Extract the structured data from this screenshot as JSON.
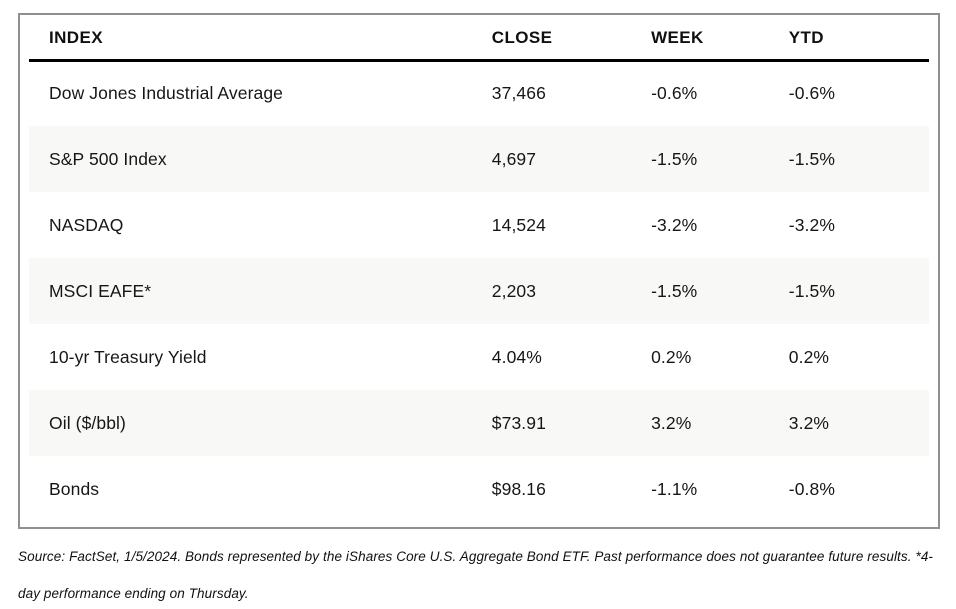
{
  "chart_data": {
    "type": "table",
    "columns": [
      "INDEX",
      "CLOSE",
      "WEEK",
      "YTD"
    ],
    "rows": [
      [
        "Dow Jones Industrial Average",
        "37,466",
        "-0.6%",
        "-0.6%"
      ],
      [
        "S&P 500 Index",
        "4,697",
        "-1.5%",
        "-1.5%"
      ],
      [
        "NASDAQ",
        "14,524",
        "-3.2%",
        "-3.2%"
      ],
      [
        "MSCI EAFE*",
        "2,203",
        "-1.5%",
        "-1.5%"
      ],
      [
        "10-yr Treasury Yield",
        "4.04%",
        "0.2%",
        "0.2%"
      ],
      [
        "Oil ($/bbl)",
        "$73.91",
        "3.2%",
        "3.2%"
      ],
      [
        "Bonds",
        "$98.16",
        "-1.1%",
        "-0.8%"
      ]
    ],
    "footnote": "Source: FactSet, 1/5/2024. Bonds represented by the iShares Core U.S. Aggregate Bond ETF. Past performance does not guarantee future results. *4-day performance ending on Thursday.",
    "layout": {
      "stripe_color": "#f8f8f6",
      "border_color": "#8f8f8f",
      "header_rule_color": "#000000",
      "striped_rows": "even"
    }
  }
}
